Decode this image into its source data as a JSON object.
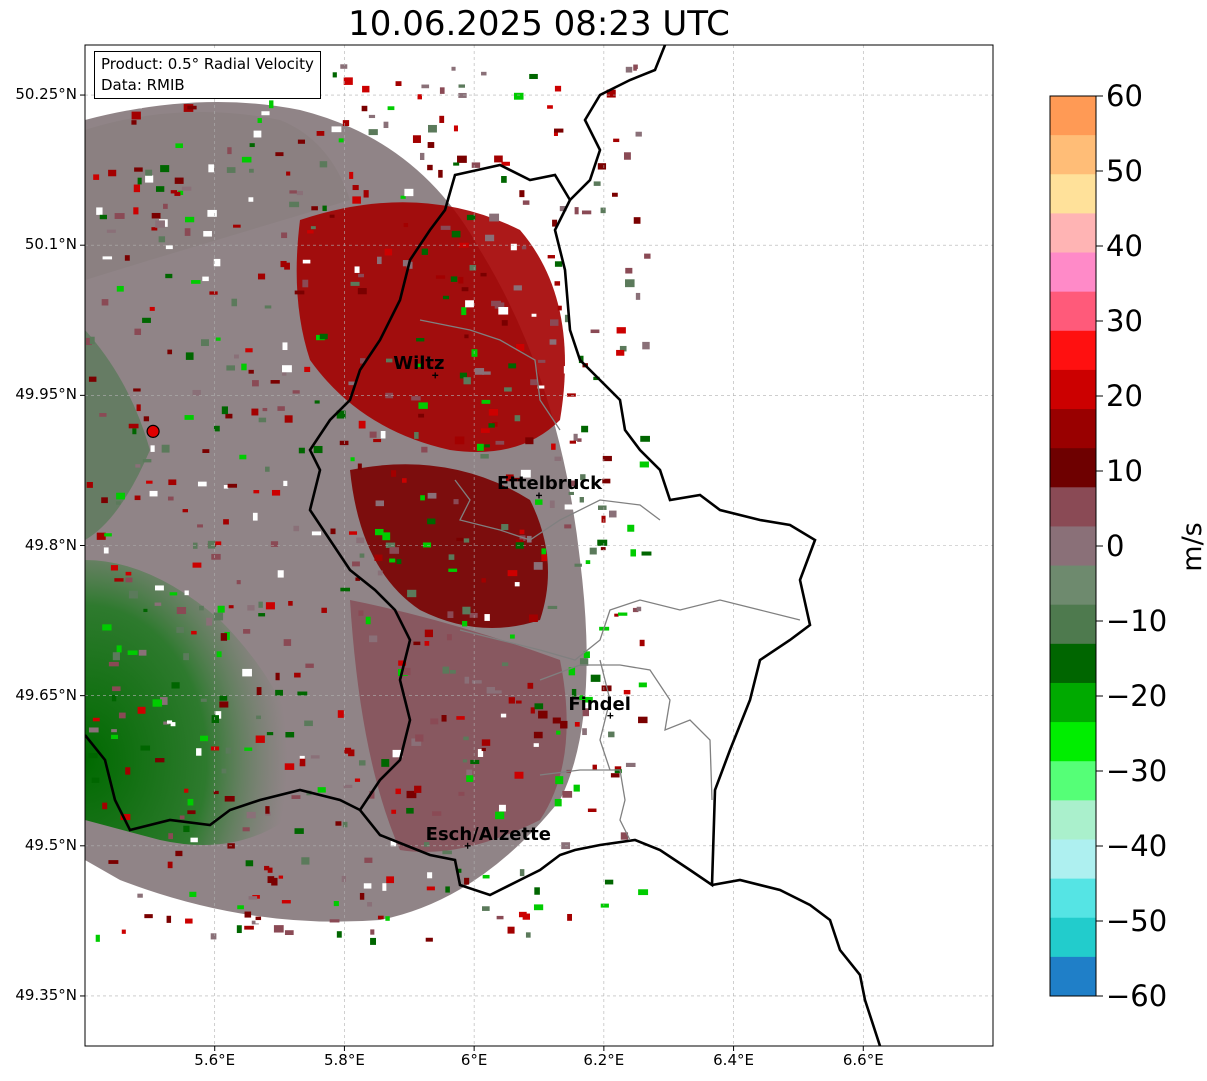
{
  "title": "10.06.2025 08:23 UTC",
  "product_box": {
    "line1": "Product: 0.5° Radial Velocity",
    "line2": "Data: RMIB"
  },
  "map": {
    "lon_range": [
      5.4,
      6.8
    ],
    "lat_range": [
      49.3,
      50.3
    ],
    "radar_site": {
      "lon": 5.505,
      "lat": 49.914
    },
    "y_ticks": [
      "50.25°N",
      "50.1°N",
      "49.95°N",
      "49.8°N",
      "49.65°N",
      "49.5°N",
      "49.35°N"
    ],
    "y_tick_values": [
      50.25,
      50.1,
      49.95,
      49.8,
      49.65,
      49.5,
      49.35
    ],
    "x_ticks": [
      "5.6°E",
      "5.8°E",
      "6°E",
      "6.2°E",
      "6.4°E",
      "6.6°E"
    ],
    "x_tick_values": [
      5.6,
      5.8,
      6.0,
      6.2,
      6.4,
      6.6
    ],
    "grid": true,
    "cities": [
      {
        "name": "Wiltz",
        "lon": 5.94,
        "lat": 49.97
      },
      {
        "name": "Ettelbruck",
        "lon": 6.1,
        "lat": 49.85
      },
      {
        "name": "Findel",
        "lon": 6.21,
        "lat": 49.63
      },
      {
        "name": "Esch/Alzette",
        "lon": 5.99,
        "lat": 49.5
      }
    ]
  },
  "colorbar": {
    "label": "m/s",
    "ticks": [
      "60",
      "50",
      "40",
      "30",
      "20",
      "10",
      "0",
      "−10",
      "−20",
      "−30",
      "−40",
      "−50",
      "−60"
    ],
    "tick_values": [
      60,
      50,
      40,
      30,
      20,
      10,
      0,
      -10,
      -20,
      -30,
      -40,
      -50,
      -60
    ],
    "range": [
      -60,
      60
    ],
    "colors_top_to_bottom": [
      "#ff9a55",
      "#ffbd77",
      "#ffe19a",
      "#ffb4b4",
      "#ff8ac8",
      "#ff5a7a",
      "#ff1010",
      "#cc0000",
      "#990000",
      "#6e0000",
      "#8a4a55",
      "#8a7078",
      "#6e8a6e",
      "#4e7a4e",
      "#006600",
      "#00aa00",
      "#00ee00",
      "#55ff77",
      "#aaf0cc",
      "#aef0f0",
      "#55e4e4",
      "#22cccc",
      "#1f7fc8"
    ]
  },
  "colors": {
    "grid": "#b0b0b0",
    "border": "#000000",
    "canton_border": "#808080"
  }
}
